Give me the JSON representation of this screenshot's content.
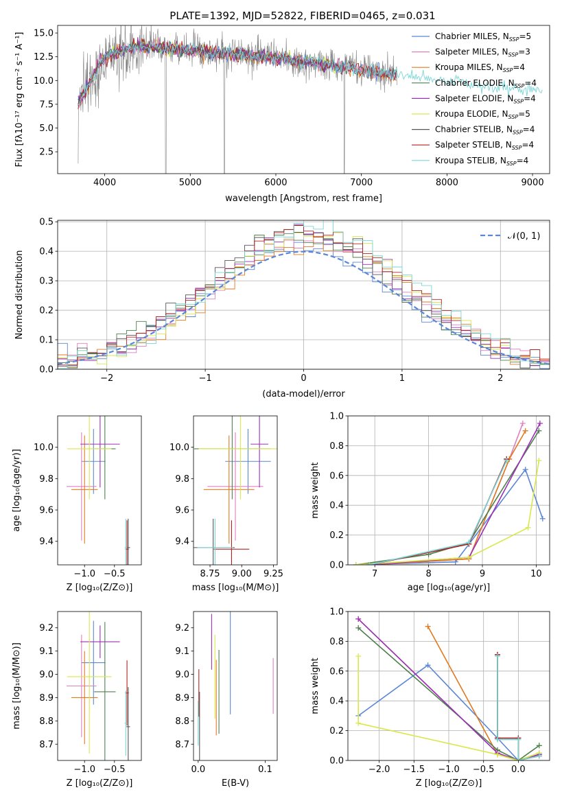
{
  "colors": [
    "#5b86d6",
    "#e07fbf",
    "#e07a1f",
    "#4f7f4f",
    "#9b2fb5",
    "#d8e84a",
    "#555555",
    "#b22222",
    "#7ad6d6"
  ],
  "legend_top": [
    {
      "text": "Chabrier MILES, N",
      "sub": "SSP",
      "tail": "=5"
    },
    {
      "text": "Salpeter MILES, N",
      "sub": "SSP",
      "tail": "=3"
    },
    {
      "text": "Kroupa MILES, N",
      "sub": "SSP",
      "tail": "=4"
    },
    {
      "text": "Chabrier ELODIE, N",
      "sub": "SSP",
      "tail": "=4"
    },
    {
      "text": "Salpeter ELODIE, N",
      "sub": "SSP",
      "tail": "=4"
    },
    {
      "text": "Kroupa ELODIE, N",
      "sub": "SSP",
      "tail": "=5"
    },
    {
      "text": "Chabrier STELIB, N",
      "sub": "SSP",
      "tail": "=4"
    },
    {
      "text": "Salpeter STELIB, N",
      "sub": "SSP",
      "tail": "=4"
    },
    {
      "text": "Kroupa STELIB, N",
      "sub": "SSP",
      "tail": "=4"
    }
  ],
  "chart_data": [
    {
      "type": "line",
      "title": "PLATE=1392, MJD=52822, FIBERID=0465, z=0.031",
      "xlabel": "wavelength [Angstrom, rest frame]",
      "ylabel": "Flux [fλ10⁻¹⁷ erg cm⁻² s⁻¹ A⁻¹]",
      "xlim": [
        3450,
        9200
      ],
      "ylim": [
        0.2,
        15.8
      ],
      "xticks": [
        "4000",
        "5000",
        "6000",
        "7000",
        "8000",
        "9000"
      ],
      "yticks": [
        "2.5",
        "5.0",
        "7.5",
        "10.0",
        "12.5",
        "15.0"
      ],
      "continuum": [
        [
          3690,
          7.6
        ],
        [
          3750,
          8.6
        ],
        [
          3850,
          10.2
        ],
        [
          3950,
          12.0
        ],
        [
          4050,
          12.6
        ],
        [
          4200,
          13.2
        ],
        [
          4400,
          13.6
        ],
        [
          4600,
          13.5
        ],
        [
          4800,
          13.3
        ],
        [
          5000,
          13.1
        ],
        [
          5200,
          13.0
        ],
        [
          5400,
          12.8
        ],
        [
          5600,
          12.7
        ],
        [
          5800,
          12.5
        ],
        [
          6000,
          12.4
        ],
        [
          6200,
          12.1
        ],
        [
          6400,
          11.9
        ],
        [
          6600,
          11.6
        ],
        [
          6800,
          11.4
        ],
        [
          7000,
          11.1
        ],
        [
          7200,
          10.9
        ],
        [
          7400,
          10.6
        ],
        [
          7600,
          10.4
        ],
        [
          7800,
          10.1
        ],
        [
          8000,
          9.9
        ],
        [
          8200,
          9.7
        ],
        [
          8400,
          9.5
        ],
        [
          8600,
          9.3
        ],
        [
          8800,
          9.1
        ],
        [
          9000,
          8.9
        ],
        [
          9120,
          8.8
        ]
      ],
      "series_extents": [
        7420,
        7420,
        7420,
        6780,
        6780,
        6780,
        7420,
        7420,
        9120
      ]
    },
    {
      "type": "bar",
      "xlabel": "(data-model)/error",
      "ylabel": "Normed distribution",
      "xlim": [
        -2.5,
        2.5
      ],
      "ylim": [
        0,
        0.505
      ],
      "xticks": [
        "−2",
        "−1",
        "0",
        "1",
        "2"
      ],
      "yticks": [
        "0.0",
        "0.1",
        "0.2",
        "0.3",
        "0.4",
        "0.5"
      ],
      "bin_width": 0.1,
      "reference": {
        "name": "𝒩(0, 1)",
        "mu": 0,
        "sigma": 1
      }
    },
    {
      "type": "scatter",
      "xlabel": "Z [log₁₀(Z/Z⊙)]",
      "ylabel": "age  [log₁₀(age/yr)]",
      "xlim": [
        -1.45,
        -0.05
      ],
      "ylim": [
        9.25,
        10.2
      ],
      "xticks": [
        "−1.0",
        "−0.5"
      ],
      "yticks": [
        "9.4",
        "9.6",
        "9.8",
        "10.0"
      ]
    },
    {
      "type": "scatter",
      "xlabel": "mass [log₁₀(M/M⊙)]",
      "xlim": [
        8.62,
        9.28
      ],
      "ylim": [
        9.25,
        10.2
      ],
      "xticks": [
        "8.75",
        "9.00",
        "9.25"
      ],
      "yticks": [
        "9.4",
        "9.6",
        "9.8",
        "10.0"
      ]
    },
    {
      "type": "line",
      "xlabel": "age  [log₁₀(age/yr)]",
      "ylabel": "mass weight",
      "xlim": [
        6.5,
        10.25
      ],
      "ylim": [
        0,
        1
      ],
      "xticks": [
        "7",
        "8",
        "9",
        "10"
      ],
      "yticks": [
        "0.0",
        "0.2",
        "0.4",
        "0.6",
        "0.8",
        "1.0"
      ],
      "series": [
        {
          "x": [
            6.65,
            8.5,
            9.8,
            10.12
          ],
          "y": [
            0.0,
            0.02,
            0.64,
            0.31
          ]
        },
        {
          "x": [
            6.9,
            8.75,
            9.5,
            9.75
          ],
          "y": [
            0.0,
            0.04,
            0.71,
            0.95
          ]
        },
        {
          "x": [
            6.9,
            8.75,
            9.5,
            9.8
          ],
          "y": [
            0.0,
            0.04,
            0.71,
            0.9
          ]
        },
        {
          "x": [
            6.65,
            8.0,
            8.75,
            10.05
          ],
          "y": [
            0.0,
            0.07,
            0.15,
            0.9
          ]
        },
        {
          "x": [
            6.9,
            8.75,
            10.07
          ],
          "y": [
            0.0,
            0.05,
            0.95
          ]
        },
        {
          "x": [
            6.65,
            8.75,
            9.85,
            10.05
          ],
          "y": [
            0.0,
            0.05,
            0.25,
            0.7
          ]
        },
        {
          "x": [
            6.9,
            8.75,
            9.45
          ],
          "y": [
            0.0,
            0.14,
            0.71
          ]
        },
        {
          "x": [
            6.9,
            8.75,
            9.45
          ],
          "y": [
            0.0,
            0.14,
            0.71
          ]
        },
        {
          "x": [
            6.9,
            8.75,
            9.45
          ],
          "y": [
            0.0,
            0.15,
            0.7
          ]
        }
      ]
    },
    {
      "type": "scatter",
      "xlabel": "Z [log₁₀(Z/Z⊙)]",
      "ylabel": "mass [log₁₀(M/M⊙)]",
      "xlim": [
        -1.45,
        -0.05
      ],
      "ylim": [
        8.63,
        9.27
      ],
      "xticks": [
        "−1.0",
        "−0.5"
      ],
      "yticks": [
        "8.7",
        "8.8",
        "8.9",
        "9.0",
        "9.1",
        "9.2"
      ]
    },
    {
      "type": "scatter",
      "xlabel": "E(B-V)",
      "xlim": [
        -0.007,
        0.118
      ],
      "ylim": [
        8.63,
        9.27
      ],
      "xticks": [
        "0.0",
        "0.1"
      ],
      "yticks": [
        "8.7",
        "8.8",
        "8.9",
        "9.0",
        "9.1",
        "9.2"
      ]
    },
    {
      "type": "line",
      "xlabel": "Z [log₁₀(Z/Z⊙)]",
      "ylabel": "mass weight",
      "xlim": [
        -2.45,
        0.45
      ],
      "ylim": [
        0,
        1
      ],
      "xticks": [
        "−2.0",
        "−1.5",
        "−1.0",
        "−0.5",
        "0.0"
      ],
      "yticks": [
        "0.0",
        "0.2",
        "0.4",
        "0.6",
        "0.8",
        "1.0"
      ],
      "series": [
        {
          "x": [
            -2.3,
            -1.3,
            -0.3,
            0.0,
            0.3
          ],
          "y": [
            0.3,
            0.64,
            0.15,
            0.0,
            0.04
          ]
        },
        {
          "x": [
            -2.3,
            -0.3,
            0.0,
            0.3
          ],
          "y": [
            0.95,
            0.05,
            0.0,
            0.04
          ]
        },
        {
          "x": [
            -1.3,
            -0.3,
            0.0,
            0.3
          ],
          "y": [
            0.9,
            0.04,
            0.0,
            0.05
          ]
        },
        {
          "x": [
            -2.3,
            -0.3,
            0.0,
            0.3
          ],
          "y": [
            0.89,
            0.07,
            0.0,
            0.1
          ]
        },
        {
          "x": [
            -2.3,
            -0.3,
            0.0,
            0.3
          ],
          "y": [
            0.95,
            0.05,
            0.0,
            0.04
          ]
        },
        {
          "x": [
            -2.3,
            -2.3,
            -0.3,
            0.0,
            0.3
          ],
          "y": [
            0.7,
            0.25,
            0.04,
            0.0,
            0.05
          ]
        },
        {
          "x": [
            -0.3,
            -0.3,
            0.0,
            0.0,
            0.3
          ],
          "y": [
            0.71,
            0.15,
            0.15,
            0.0,
            0.03
          ]
        },
        {
          "x": [
            -0.3,
            -0.3,
            0.0,
            0.0,
            0.3
          ],
          "y": [
            0.71,
            0.15,
            0.15,
            0.0,
            0.03
          ]
        },
        {
          "x": [
            -0.3,
            -0.3,
            0.0,
            0.0,
            0.3
          ],
          "y": [
            0.7,
            0.14,
            0.14,
            0.0,
            0.03
          ]
        }
      ]
    }
  ],
  "derived": [
    {
      "Z": -0.85,
      "Zerr": 0.2,
      "age": 9.91,
      "ageerr": 0.09,
      "mass": 9.05,
      "masserr": 0.18,
      "ebv": 0.048,
      "ebverr": 0.37
    },
    {
      "Z": -1.05,
      "Zerr": 0.25,
      "age": 9.75,
      "ageerr": 0.15,
      "mass": 8.95,
      "masserr": 0.22,
      "ebv": 0.112,
      "ebverr": 0.2
    },
    {
      "Z": -1.0,
      "Zerr": 0.22,
      "age": 9.73,
      "ageerr": 0.15,
      "mass": 8.9,
      "masserr": 0.2,
      "ebv": 0.027,
      "ebverr": 0.27
    },
    {
      "Z": -0.66,
      "Zerr": 0.18,
      "age": 9.99,
      "ageerr": 0.14,
      "mass": 8.925,
      "masserr": 0.3,
      "ebv": 0.031,
      "ebverr": 0.3
    },
    {
      "Z": -0.74,
      "Zerr": 0.33,
      "age": 10.02,
      "ageerr": 0.12,
      "mass": 9.14,
      "masserr": 0.07,
      "ebv": 0.02,
      "ebverr": 0.2
    },
    {
      "Z": -0.92,
      "Zerr": 0.37,
      "age": 9.99,
      "ageerr": 0.14,
      "mass": 8.99,
      "masserr": 0.33,
      "ebv": 0.025,
      "ebverr": 0.3
    },
    {
      "Z": -0.27,
      "Zerr": 0.03,
      "age": 9.36,
      "ageerr": 0.08,
      "mass": 8.775,
      "masserr": 0.17,
      "ebv": 0.002,
      "ebverr": 0.25
    },
    {
      "Z": -0.29,
      "Zerr": 0.03,
      "age": 9.35,
      "ageerr": 0.08,
      "mass": 8.92,
      "masserr": 0.14,
      "ebv": 0.001,
      "ebverr": 0.17
    },
    {
      "Z": -0.31,
      "Zerr": 0.02,
      "age": 9.36,
      "ageerr": 0.08,
      "mass": 8.79,
      "masserr": 0.14,
      "ebv": 0.0,
      "ebverr": 0.16
    }
  ]
}
